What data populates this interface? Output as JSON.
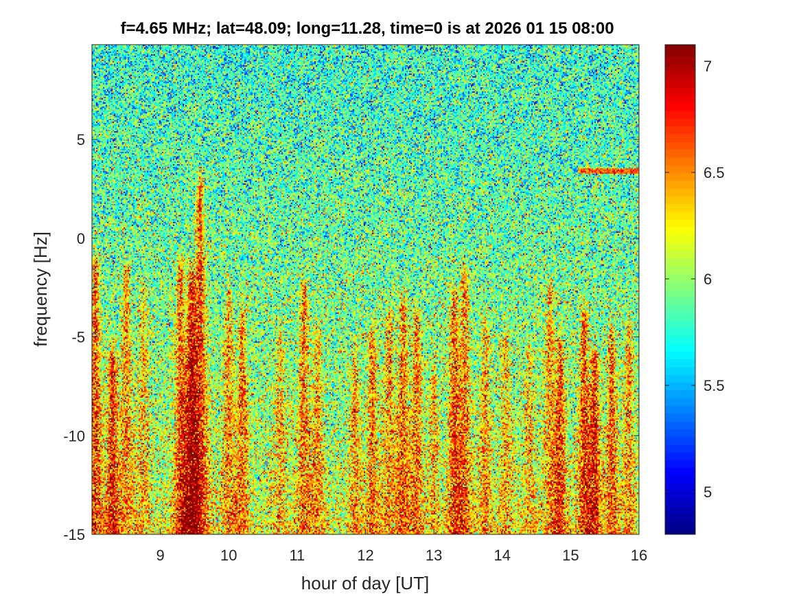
{
  "chart_data": {
    "type": "heatmap",
    "title": "f=4.65 MHz;  lat=48.09; long=11.28, time=0 is at 2026 01 15 08:00",
    "xlabel": "hour of day [UT]",
    "ylabel": "frequency [Hz]",
    "xlim": [
      8,
      16
    ],
    "ylim": [
      -15,
      9.8
    ],
    "xticks": [
      9,
      10,
      11,
      12,
      13,
      14,
      15,
      16
    ],
    "yticks": [
      -15,
      -10,
      -5,
      0,
      5
    ],
    "colormap": "jet",
    "clim": [
      4.8,
      7.1
    ],
    "colorbar_ticks": [
      5,
      5.5,
      6,
      6.5,
      7
    ],
    "background_level_upper": 5.75,
    "background_level_lower": 6.15,
    "features": [
      {
        "hour": 8.05,
        "freq_low": -15,
        "freq_high": -1.5,
        "level": 6.9
      },
      {
        "hour": 8.3,
        "freq_low": -15,
        "freq_high": -6,
        "level": 7.0
      },
      {
        "hour": 8.5,
        "freq_low": -15,
        "freq_high": -1.5,
        "level": 6.6
      },
      {
        "hour": 8.75,
        "freq_low": -15,
        "freq_high": -3,
        "level": 6.5
      },
      {
        "hour": 9.3,
        "freq_low": -15,
        "freq_high": -1.5,
        "level": 6.8
      },
      {
        "hour": 9.45,
        "freq_low": -15,
        "freq_high": -2,
        "level": 7.0
      },
      {
        "hour": 9.58,
        "freq_low": -15,
        "freq_high": 2.5,
        "level": 6.9
      },
      {
        "hour": 10.0,
        "freq_low": -15,
        "freq_high": -3,
        "level": 6.6
      },
      {
        "hour": 10.2,
        "freq_low": -15,
        "freq_high": -4,
        "level": 6.7
      },
      {
        "hour": 10.75,
        "freq_low": -15,
        "freq_high": -5,
        "level": 6.5
      },
      {
        "hour": 11.1,
        "freq_low": -15,
        "freq_high": -2.5,
        "level": 6.7
      },
      {
        "hour": 11.3,
        "freq_low": -15,
        "freq_high": -5,
        "level": 6.6
      },
      {
        "hour": 11.85,
        "freq_low": -15,
        "freq_high": -6,
        "level": 6.6
      },
      {
        "hour": 12.1,
        "freq_low": -15,
        "freq_high": -5,
        "level": 6.7
      },
      {
        "hour": 12.35,
        "freq_low": -15,
        "freq_high": -4,
        "level": 6.6
      },
      {
        "hour": 12.55,
        "freq_low": -15,
        "freq_high": -3.5,
        "level": 6.8
      },
      {
        "hour": 12.75,
        "freq_low": -15,
        "freq_high": -4,
        "level": 6.7
      },
      {
        "hour": 13.0,
        "freq_low": -15,
        "freq_high": -7,
        "level": 6.5
      },
      {
        "hour": 13.3,
        "freq_low": -15,
        "freq_high": -3,
        "level": 6.8
      },
      {
        "hour": 13.45,
        "freq_low": -15,
        "freq_high": -2,
        "level": 6.7
      },
      {
        "hour": 13.75,
        "freq_low": -15,
        "freq_high": -5,
        "level": 6.6
      },
      {
        "hour": 14.05,
        "freq_low": -15,
        "freq_high": -5,
        "level": 6.5
      },
      {
        "hour": 14.4,
        "freq_low": -15,
        "freq_high": -6,
        "level": 6.5
      },
      {
        "hour": 14.7,
        "freq_low": -15,
        "freq_high": -2.5,
        "level": 6.6
      },
      {
        "hour": 14.85,
        "freq_low": -15,
        "freq_high": -5.5,
        "level": 6.9
      },
      {
        "hour": 15.2,
        "freq_low": -15,
        "freq_high": -4,
        "level": 6.9
      },
      {
        "hour": 15.35,
        "freq_low": -15,
        "freq_high": -6,
        "level": 7.0
      },
      {
        "hour": 15.6,
        "freq_low": -15,
        "freq_high": -5,
        "level": 6.8
      },
      {
        "hour": 15.85,
        "freq_low": -15,
        "freq_high": -4.5,
        "level": 6.6
      }
    ],
    "horizontal_line": {
      "freq": 3.4,
      "hour_start": 15.1,
      "hour_end": 16,
      "level": 6.6
    }
  }
}
